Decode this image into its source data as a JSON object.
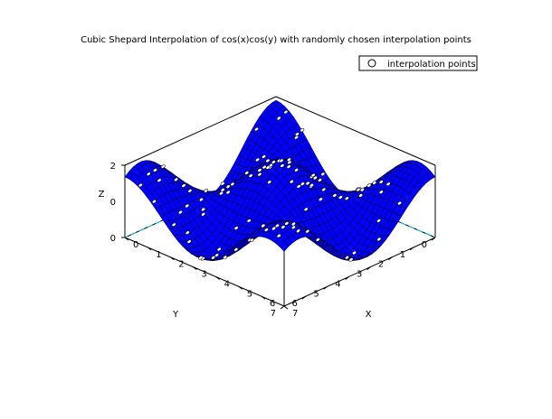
{
  "chart_data": {
    "type": "surface3d",
    "title": "Cubic Shepard Interpolation of cos(x)cos(y) with randomly chosen interpolation points",
    "function": "cos(x)cos(y)",
    "xlabel": "X",
    "ylabel": "Y",
    "zlabel": "Z",
    "xlim": [
      0,
      7
    ],
    "ylim": [
      0,
      7
    ],
    "zlim": [
      0,
      2
    ],
    "x_ticks": [
      "0",
      "1",
      "2",
      "3",
      "4",
      "5",
      "6",
      "7"
    ],
    "y_ticks": [
      "0",
      "1",
      "2",
      "3",
      "4",
      "5",
      "6",
      "7"
    ],
    "z_ticks": [
      "0",
      "2"
    ],
    "z_minor_ticks": [
      "0"
    ],
    "surface_color": "#0000ff",
    "mesh_color": "#000000",
    "legend": {
      "entries": [
        "interpolation points"
      ],
      "position": "top-right"
    },
    "series": [
      {
        "name": "interpolation points",
        "marker": "circle",
        "marker_color": "#ffffff"
      }
    ]
  }
}
